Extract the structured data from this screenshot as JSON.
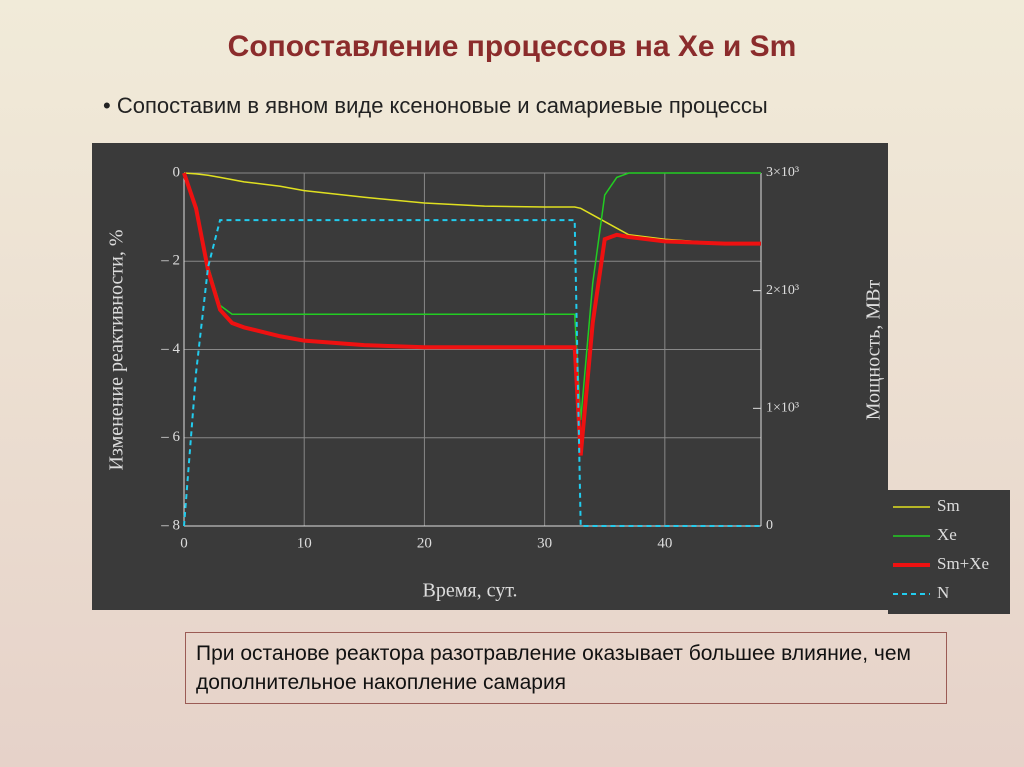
{
  "title": "Сопоставление процессов на Xe и Sm",
  "bullet": "Сопоставим в явном виде ксеноновые и самариевые процессы",
  "note": "При останове реактора разотравление оказывает большее влияние, чем дополнительное накопление самария",
  "chart_data": {
    "type": "line",
    "xlabel": "Время, сут.",
    "ylabel": "Изменение реактивности, %",
    "y2label": "Мощность, МВт",
    "x": [
      0,
      1,
      2,
      3,
      4,
      5,
      8,
      10,
      15,
      20,
      25,
      30,
      32.5,
      33,
      34,
      35,
      36,
      37,
      40,
      45,
      48
    ],
    "xlim": [
      0,
      48
    ],
    "xticks": [
      0,
      10,
      20,
      30,
      40
    ],
    "ylim": [
      -8,
      0
    ],
    "yticks": [
      0,
      {
        "value": -2,
        "label": "– 2"
      },
      {
        "value": -4,
        "label": "– 4"
      },
      {
        "value": -6,
        "label": "– 6"
      },
      {
        "value": -8,
        "label": "– 8"
      }
    ],
    "y2lim": [
      0,
      3000
    ],
    "y2ticks": [
      0,
      {
        "value": 1000,
        "label": "1×10³"
      },
      {
        "value": 2000,
        "label": "2×10³"
      },
      {
        "value": 3000,
        "label": "3×10³"
      }
    ],
    "grid": true,
    "legend": "lower right",
    "series": [
      {
        "name": "Sm",
        "color": "#e0e020",
        "line_width": 1.5,
        "values": [
          0,
          -0.02,
          -0.05,
          -0.1,
          -0.15,
          -0.2,
          -0.3,
          -0.4,
          -0.55,
          -0.68,
          -0.75,
          -0.77,
          -0.77,
          -0.8,
          -0.95,
          -1.1,
          -1.25,
          -1.4,
          -1.5,
          -1.6,
          -1.6
        ]
      },
      {
        "name": "Xe",
        "color": "#22cc22",
        "line_width": 1.5,
        "values": [
          0,
          -0.8,
          -2.1,
          -3.0,
          -3.2,
          -3.2,
          -3.2,
          -3.2,
          -3.2,
          -3.2,
          -3.2,
          -3.2,
          -3.2,
          -5.6,
          -2.5,
          -0.5,
          -0.1,
          0,
          0,
          0,
          0
        ]
      },
      {
        "name": "Sm+Xe",
        "color": "#ee1111",
        "line_width": 4,
        "values": [
          0,
          -0.8,
          -2.2,
          -3.1,
          -3.4,
          -3.5,
          -3.7,
          -3.8,
          -3.9,
          -3.95,
          -3.95,
          -3.95,
          -3.95,
          -6.4,
          -3.4,
          -1.5,
          -1.4,
          -1.45,
          -1.55,
          -1.6,
          -1.6
        ]
      },
      {
        "name": "N",
        "color": "#22ccee",
        "line_width": 2,
        "dashed": true,
        "axis": "y2",
        "values": [
          0,
          1300,
          2200,
          2600,
          2600,
          2600,
          2600,
          2600,
          2600,
          2600,
          2600,
          2600,
          2600,
          0,
          0,
          0,
          0,
          0,
          0,
          0,
          0
        ]
      }
    ]
  }
}
